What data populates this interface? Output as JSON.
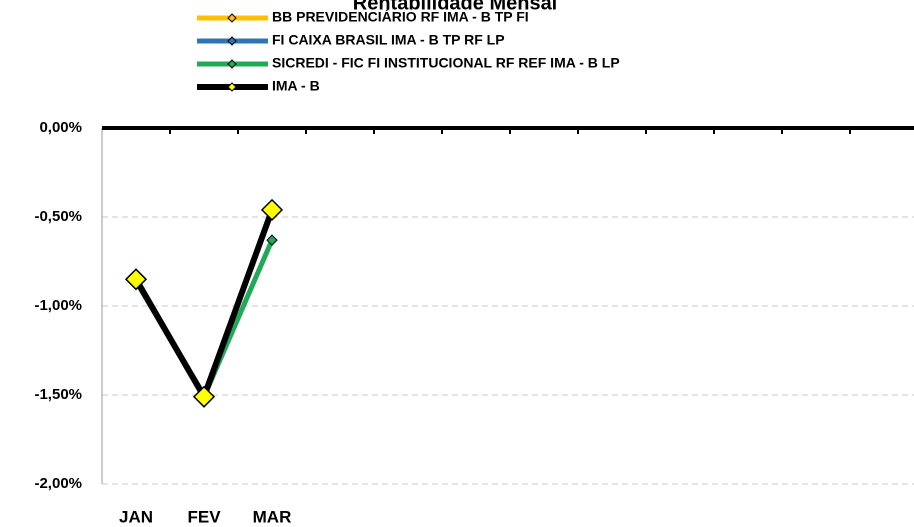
{
  "chart_data": {
    "type": "line",
    "title": "Rentabilidade Mensal",
    "categories": [
      "JAN",
      "FEV",
      "MAR",
      null,
      null,
      null,
      null,
      null,
      null,
      null,
      null,
      null
    ],
    "series": [
      {
        "name": "BB PREVIDENCIÁRIO RF IMA - B TP FI",
        "color": "#ffc000",
        "marker_color": "#ffc000",
        "values": [
          -0.86,
          -1.5,
          -0.47,
          null,
          null,
          null,
          null,
          null,
          null,
          null,
          null,
          null
        ]
      },
      {
        "name": "FI CAIXA BRASIL IMA - B TP RF LP",
        "color": "#2e75b6",
        "marker_color": "#2e75b6",
        "values": [
          -0.86,
          -1.5,
          -0.47,
          null,
          null,
          null,
          null,
          null,
          null,
          null,
          null,
          null
        ]
      },
      {
        "name": "SICREDI - FIC FI INSTITUCIONAL RF REF IMA - B LP",
        "color": "#21a957",
        "marker_color": "#21a957",
        "values": [
          -0.86,
          -1.51,
          -0.63,
          null,
          null,
          null,
          null,
          null,
          null,
          null,
          null,
          null
        ]
      },
      {
        "name": "IMA - B",
        "color": "#000000",
        "marker_color": "#ffff00",
        "values": [
          -0.85,
          -1.51,
          -0.46,
          null,
          null,
          null,
          null,
          null,
          null,
          null,
          null,
          null
        ]
      }
    ],
    "ylim": [
      -2,
      0
    ],
    "yticks": [
      {
        "value": 0,
        "label": "0,00%"
      },
      {
        "value": -0.5,
        "label": "-0,50%"
      },
      {
        "value": -1,
        "label": "-1,00%"
      },
      {
        "value": -1.5,
        "label": "-1,50%"
      },
      {
        "value": -2,
        "label": "-2,00%"
      }
    ],
    "grid": true
  }
}
